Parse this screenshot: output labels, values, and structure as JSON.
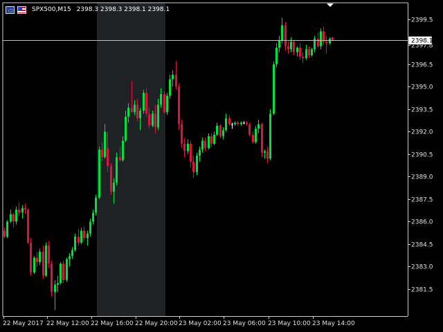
{
  "header": {
    "symbol": "SPX500,M15",
    "ohlc": "2398.3 2398.3 2398.1 2398.1"
  },
  "price_marker": "2398.1",
  "colors": {
    "background": "#000000",
    "bull": "#00e040",
    "bear": "#e01040",
    "doji": "#ffffff",
    "session_shade": "#1e2224",
    "axis": "#cfcfcf",
    "price_line": "#c0c0c0"
  },
  "chart_data": {
    "type": "candlestick",
    "ylim": [
      2379.7,
      2400.6
    ],
    "y_ticks": [
      "2399.5",
      "2397.8",
      "2396.5",
      "2395.0",
      "2393.5",
      "2392.0",
      "2390.5",
      "2389.0",
      "2387.5",
      "2386.0",
      "2384.5",
      "2383.0",
      "2381.5"
    ],
    "x_ticks": [
      "22 May 2017",
      "22 May 12:00",
      "22 May 16:00",
      "22 May 20:00",
      "23 May 02:00",
      "23 May 06:00",
      "23 May 10:00",
      "23 May 14:00"
    ],
    "last_price": 2398.1,
    "highlight_session": [
      "22 May 16:00",
      "22 May 20:00"
    ],
    "candles": [
      [
        2385.4,
        2385.6,
        2384.9,
        2385.0
      ],
      [
        2385.0,
        2386.1,
        2384.9,
        2386.0
      ],
      [
        2386.0,
        2386.8,
        2385.9,
        2386.5
      ],
      [
        2386.5,
        2386.6,
        2385.6,
        2386.0
      ],
      [
        2386.0,
        2387.0,
        2385.8,
        2386.8
      ],
      [
        2386.8,
        2387.3,
        2386.4,
        2386.6
      ],
      [
        2386.6,
        2387.1,
        2386.2,
        2386.9
      ],
      [
        2386.9,
        2387.2,
        2386.5,
        2386.8
      ],
      [
        2386.8,
        2386.9,
        2384.5,
        2384.6
      ],
      [
        2384.6,
        2384.9,
        2382.4,
        2382.6
      ],
      [
        2382.6,
        2383.7,
        2382.5,
        2383.6
      ],
      [
        2383.6,
        2384.0,
        2383.0,
        2383.3
      ],
      [
        2383.3,
        2384.2,
        2383.1,
        2384.0
      ],
      [
        2384.0,
        2384.4,
        2382.2,
        2382.4
      ],
      [
        2382.4,
        2384.6,
        2382.3,
        2384.4
      ],
      [
        2384.4,
        2384.7,
        2382.9,
        2383.2
      ],
      [
        2383.2,
        2383.4,
        2381.0,
        2381.3
      ],
      [
        2381.3,
        2382.1,
        2380.1,
        2381.8
      ],
      [
        2381.8,
        2382.4,
        2381.3,
        2381.9
      ],
      [
        2381.9,
        2383.3,
        2381.8,
        2383.2
      ],
      [
        2383.2,
        2383.4,
        2381.9,
        2382.1
      ],
      [
        2382.1,
        2383.6,
        2382.0,
        2383.5
      ],
      [
        2383.5,
        2383.9,
        2383.0,
        2383.7
      ],
      [
        2383.7,
        2384.3,
        2383.5,
        2384.1
      ],
      [
        2384.1,
        2385.2,
        2384.0,
        2385.0
      ],
      [
        2385.0,
        2385.5,
        2384.4,
        2384.6
      ],
      [
        2384.6,
        2385.6,
        2384.5,
        2385.4
      ],
      [
        2385.4,
        2385.7,
        2384.7,
        2384.9
      ],
      [
        2384.9,
        2385.4,
        2384.4,
        2385.2
      ],
      [
        2385.2,
        2386.2,
        2385.0,
        2386.0
      ],
      [
        2386.0,
        2386.8,
        2385.8,
        2386.6
      ],
      [
        2386.6,
        2387.8,
        2386.4,
        2387.6
      ],
      [
        2387.6,
        2391.0,
        2387.5,
        2390.8
      ],
      [
        2390.8,
        2391.3,
        2390.0,
        2390.3
      ],
      [
        2390.3,
        2392.5,
        2390.2,
        2392.0
      ],
      [
        2390.9,
        2392.0,
        2389.3,
        2389.7
      ],
      [
        2389.7,
        2389.9,
        2387.8,
        2388.0
      ],
      [
        2388.0,
        2388.9,
        2387.2,
        2388.6
      ],
      [
        2388.6,
        2390.6,
        2388.4,
        2390.3
      ],
      [
        2390.3,
        2391.0,
        2390.0,
        2390.1
      ],
      [
        2390.1,
        2391.7,
        2390.0,
        2391.4
      ],
      [
        2391.4,
        2393.4,
        2391.3,
        2393.0
      ],
      [
        2393.0,
        2393.9,
        2392.6,
        2393.6
      ],
      [
        2393.6,
        2395.4,
        2393.4,
        2393.3
      ],
      [
        2393.3,
        2394.1,
        2393.1,
        2393.8
      ],
      [
        2393.8,
        2394.2,
        2392.7,
        2392.9
      ],
      [
        2392.9,
        2393.6,
        2392.1,
        2393.4
      ],
      [
        2393.4,
        2394.8,
        2393.2,
        2394.6
      ],
      [
        2394.6,
        2394.9,
        2393.0,
        2393.2
      ],
      [
        2393.2,
        2393.6,
        2392.2,
        2392.4
      ],
      [
        2392.4,
        2393.4,
        2392.3,
        2393.2
      ],
      [
        2393.2,
        2393.8,
        2391.9,
        2392.3
      ],
      [
        2392.3,
        2394.2,
        2392.1,
        2393.8
      ],
      [
        2393.8,
        2394.9,
        2393.6,
        2394.5
      ],
      [
        2394.5,
        2394.7,
        2393.2,
        2393.3
      ],
      [
        2393.3,
        2394.6,
        2393.1,
        2394.4
      ],
      [
        2394.4,
        2395.8,
        2394.2,
        2395.5
      ],
      [
        2395.5,
        2396.1,
        2395.0,
        2395.8
      ],
      [
        2395.8,
        2396.7,
        2394.8,
        2395.0
      ],
      [
        2395.0,
        2395.2,
        2392.1,
        2392.5
      ],
      [
        2392.5,
        2392.8,
        2390.9,
        2391.2
      ],
      [
        2391.2,
        2391.6,
        2390.3,
        2390.7
      ],
      [
        2390.7,
        2391.5,
        2390.5,
        2391.2
      ],
      [
        2391.2,
        2391.4,
        2389.6,
        2390.0
      ],
      [
        2390.0,
        2390.4,
        2388.9,
        2389.3
      ],
      [
        2389.3,
        2390.6,
        2389.1,
        2390.4
      ],
      [
        2390.4,
        2391.0,
        2390.0,
        2390.8
      ],
      [
        2390.8,
        2391.6,
        2390.6,
        2391.4
      ],
      [
        2391.4,
        2391.6,
        2390.7,
        2390.9
      ],
      [
        2390.9,
        2391.9,
        2390.8,
        2391.7
      ],
      [
        2391.7,
        2391.9,
        2391.0,
        2391.2
      ],
      [
        2391.2,
        2392.0,
        2391.1,
        2391.8
      ],
      [
        2391.8,
        2392.6,
        2391.7,
        2392.4
      ],
      [
        2392.4,
        2392.5,
        2391.6,
        2391.7
      ],
      [
        2391.7,
        2392.3,
        2391.5,
        2392.1
      ],
      [
        2392.1,
        2393.2,
        2392.0,
        2392.9
      ],
      [
        2392.9,
        2393.1,
        2392.4,
        2392.5
      ],
      [
        2392.5,
        2392.6,
        2392.2,
        2392.5
      ],
      [
        2392.5,
        2392.7,
        2392.4,
        2392.6
      ],
      [
        2392.6,
        2392.7,
        2392.4,
        2392.5
      ],
      [
        2392.5,
        2392.7,
        2392.4,
        2392.6
      ],
      [
        2392.6,
        2392.7,
        2392.5,
        2392.6
      ],
      [
        2392.6,
        2392.7,
        2392.4,
        2392.5
      ],
      [
        2392.5,
        2392.6,
        2391.7,
        2391.8
      ],
      [
        2391.8,
        2392.0,
        2391.2,
        2391.3
      ],
      [
        2391.3,
        2392.4,
        2391.2,
        2392.2
      ],
      [
        2392.2,
        2392.8,
        2391.9,
        2392.5
      ],
      [
        2392.5,
        2392.6,
        2390.3,
        2390.6
      ],
      [
        2390.6,
        2390.8,
        2390.2,
        2390.7
      ],
      [
        2390.7,
        2391.0,
        2389.9,
        2390.2
      ],
      [
        2390.2,
        2393.5,
        2390.1,
        2393.2
      ],
      [
        2393.2,
        2396.7,
        2393.1,
        2396.5
      ],
      [
        2396.5,
        2397.9,
        2396.3,
        2397.6
      ],
      [
        2397.6,
        2398.4,
        2397.3,
        2398.1
      ],
      [
        2398.1,
        2399.6,
        2397.9,
        2399.1
      ],
      [
        2399.1,
        2399.3,
        2397.4,
        2397.7
      ],
      [
        2397.7,
        2398.0,
        2397.2,
        2397.5
      ],
      [
        2397.5,
        2398.3,
        2397.3,
        2398.0
      ],
      [
        2398.0,
        2398.1,
        2397.1,
        2397.3
      ],
      [
        2397.3,
        2397.7,
        2397.0,
        2397.6
      ],
      [
        2397.6,
        2397.9,
        2396.8,
        2397.0
      ],
      [
        2397.0,
        2397.3,
        2396.6,
        2396.9
      ],
      [
        2396.9,
        2397.8,
        2396.8,
        2397.5
      ],
      [
        2397.5,
        2397.7,
        2396.9,
        2397.1
      ],
      [
        2397.1,
        2397.6,
        2397.0,
        2397.5
      ],
      [
        2397.5,
        2398.4,
        2397.3,
        2398.2
      ],
      [
        2398.2,
        2398.6,
        2397.6,
        2397.7
      ],
      [
        2397.7,
        2398.9,
        2397.5,
        2398.7
      ],
      [
        2398.7,
        2399.0,
        2397.8,
        2398.0
      ],
      [
        2398.0,
        2398.4,
        2397.2,
        2397.9
      ],
      [
        2397.9,
        2398.3,
        2397.8,
        2398.2
      ],
      [
        2398.3,
        2398.3,
        2398.1,
        2398.1
      ]
    ]
  }
}
